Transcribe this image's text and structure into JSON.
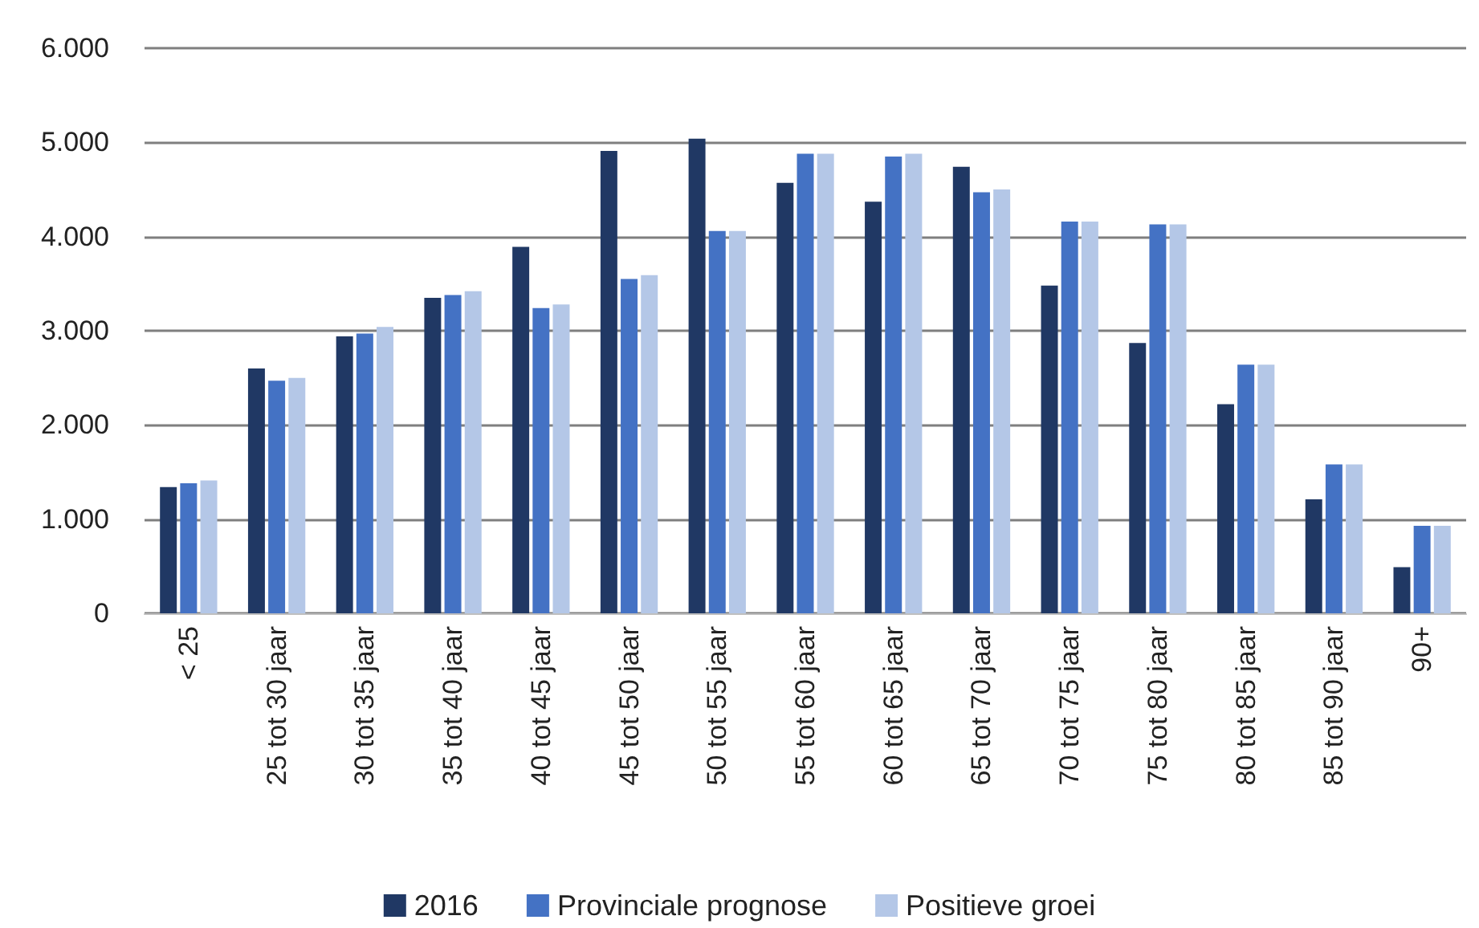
{
  "chart_data": {
    "type": "bar",
    "categories": [
      "< 25",
      "25 tot 30 jaar",
      "30 tot 35 jaar",
      "35 tot 40 jaar",
      "40 tot 45 jaar",
      "45 tot 50 jaar",
      "50 tot 55 jaar",
      "55 tot 60 jaar",
      "60 tot 65 jaar",
      "65 tot 70 jaar",
      "70 tot 75 jaar",
      "75 tot 80 jaar",
      "80 tot 85 jaar",
      "85 tot 90 jaar",
      "90+"
    ],
    "series": [
      {
        "name": "2016",
        "color": "#203864",
        "values": [
          1340,
          2600,
          2940,
          3350,
          3890,
          4910,
          5040,
          4570,
          4370,
          4740,
          3480,
          2870,
          2220,
          1210,
          490
        ]
      },
      {
        "name": "Provinciale prognose",
        "color": "#4472c4",
        "values": [
          1380,
          2470,
          2970,
          3380,
          3240,
          3550,
          4060,
          4880,
          4850,
          4470,
          4160,
          4130,
          2640,
          1580,
          930
        ]
      },
      {
        "name": "Positieve groei",
        "color": "#b4c7e7",
        "values": [
          1410,
          2500,
          3040,
          3420,
          3280,
          3590,
          4060,
          4880,
          4880,
          4500,
          4160,
          4130,
          2640,
          1580,
          930
        ]
      }
    ],
    "ylim": [
      0,
      6000
    ],
    "yticks": [
      {
        "value": 0,
        "label": "0"
      },
      {
        "value": 1000,
        "label": "1.000"
      },
      {
        "value": 2000,
        "label": "2.000"
      },
      {
        "value": 3000,
        "label": "3.000"
      },
      {
        "value": 4000,
        "label": "4.000"
      },
      {
        "value": 5000,
        "label": "5.000"
      },
      {
        "value": 6000,
        "label": "6.000"
      }
    ],
    "grid": "y",
    "legend": "bottom"
  }
}
